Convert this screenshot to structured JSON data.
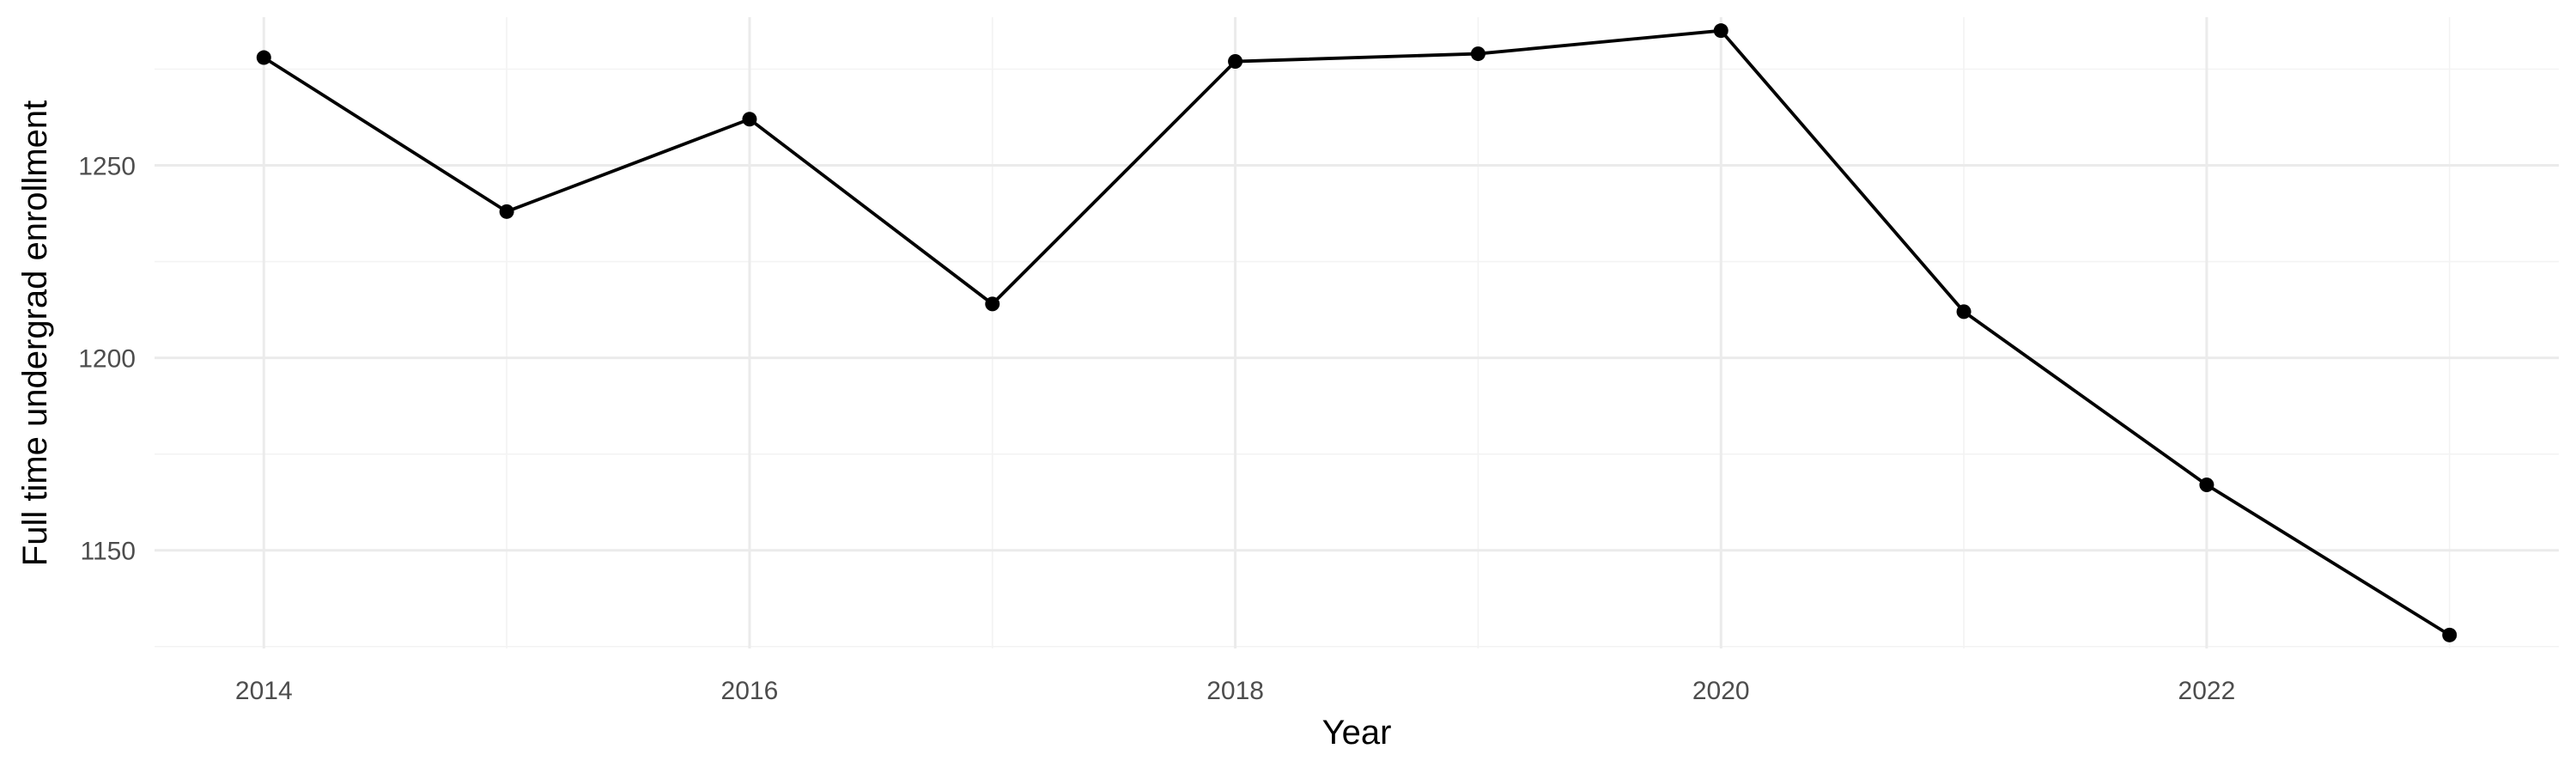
{
  "chart_data": {
    "type": "line",
    "title": "",
    "xlabel": "Year",
    "ylabel": "Full time undergrad enrollment",
    "x": [
      2014,
      2015,
      2016,
      2017,
      2018,
      2019,
      2020,
      2021,
      2022,
      2023
    ],
    "series": [
      {
        "values": [
          1278,
          1238,
          1262,
          1214,
          1277,
          1279,
          1285,
          1212,
          1167,
          1128
        ]
      }
    ],
    "xlim": [
      2013.55,
      2023.45
    ],
    "ylim": [
      1124.5,
      1288.5
    ],
    "x_ticks": [
      2014,
      2016,
      2018,
      2020,
      2022
    ],
    "x_tick_labels": [
      "2014",
      "2016",
      "2018",
      "2020",
      "2022"
    ],
    "x_minor_ticks": [
      2015,
      2017,
      2019,
      2021,
      2023
    ],
    "y_ticks": [
      1150,
      1200,
      1250
    ],
    "y_tick_labels": [
      "1150",
      "1200",
      "1250"
    ],
    "y_minor_ticks": [
      1125,
      1175,
      1225,
      1275
    ],
    "grid": true,
    "legend": "none",
    "colors": {
      "line": "#000000",
      "point": "#000000",
      "grid_major": "#ebebeb",
      "grid_minor": "#f3f3f3",
      "background": "#ffffff"
    }
  }
}
